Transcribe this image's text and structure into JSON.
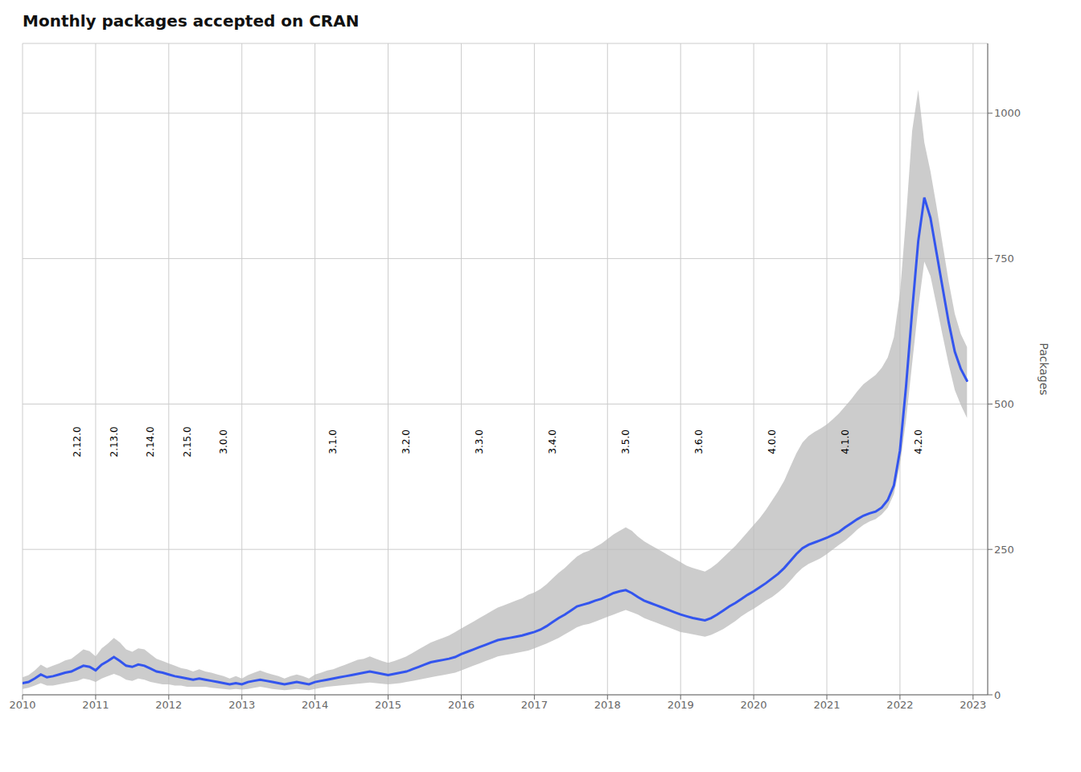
{
  "chart_data": {
    "type": "line",
    "title": "Monthly packages accepted on CRAN",
    "ylabel": "Packages",
    "color": "#3355ee",
    "grid": true,
    "xlim": [
      2010.0,
      2023.2
    ],
    "xticks": [
      2010,
      2011,
      2012,
      2013,
      2014,
      2015,
      2016,
      2017,
      2018,
      2019,
      2020,
      2021,
      2022,
      2023
    ],
    "ylim": [
      0,
      1120
    ],
    "yticks": [
      0,
      250,
      500,
      750,
      1000
    ],
    "x": [
      2010.0,
      2010.083,
      2010.167,
      2010.25,
      2010.333,
      2010.417,
      2010.5,
      2010.583,
      2010.667,
      2010.75,
      2010.833,
      2010.917,
      2011.0,
      2011.083,
      2011.167,
      2011.25,
      2011.333,
      2011.417,
      2011.5,
      2011.583,
      2011.667,
      2011.75,
      2011.833,
      2011.917,
      2012.0,
      2012.083,
      2012.167,
      2012.25,
      2012.333,
      2012.417,
      2012.5,
      2012.583,
      2012.667,
      2012.75,
      2012.833,
      2012.917,
      2013.0,
      2013.083,
      2013.167,
      2013.25,
      2013.333,
      2013.417,
      2013.5,
      2013.583,
      2013.667,
      2013.75,
      2013.833,
      2013.917,
      2014.0,
      2014.083,
      2014.167,
      2014.25,
      2014.333,
      2014.417,
      2014.5,
      2014.583,
      2014.667,
      2014.75,
      2014.833,
      2014.917,
      2015.0,
      2015.083,
      2015.167,
      2015.25,
      2015.333,
      2015.417,
      2015.5,
      2015.583,
      2015.667,
      2015.75,
      2015.833,
      2015.917,
      2016.0,
      2016.083,
      2016.167,
      2016.25,
      2016.333,
      2016.417,
      2016.5,
      2016.583,
      2016.667,
      2016.75,
      2016.833,
      2016.917,
      2017.0,
      2017.083,
      2017.167,
      2017.25,
      2017.333,
      2017.417,
      2017.5,
      2017.583,
      2017.667,
      2017.75,
      2017.833,
      2017.917,
      2018.0,
      2018.083,
      2018.167,
      2018.25,
      2018.333,
      2018.417,
      2018.5,
      2018.583,
      2018.667,
      2018.75,
      2018.833,
      2018.917,
      2019.0,
      2019.083,
      2019.167,
      2019.25,
      2019.333,
      2019.417,
      2019.5,
      2019.583,
      2019.667,
      2019.75,
      2019.833,
      2019.917,
      2020.0,
      2020.083,
      2020.167,
      2020.25,
      2020.333,
      2020.417,
      2020.5,
      2020.583,
      2020.667,
      2020.75,
      2020.833,
      2020.917,
      2021.0,
      2021.083,
      2021.167,
      2021.25,
      2021.333,
      2021.417,
      2021.5,
      2021.583,
      2021.667,
      2021.75,
      2021.833,
      2021.917,
      2022.0,
      2022.083,
      2022.167,
      2022.25,
      2022.333,
      2022.417,
      2022.5,
      2022.583,
      2022.667,
      2022.75,
      2022.833,
      2022.917
    ],
    "values": [
      20,
      22,
      28,
      35,
      30,
      32,
      35,
      38,
      40,
      45,
      50,
      48,
      42,
      52,
      58,
      65,
      58,
      50,
      48,
      52,
      50,
      45,
      40,
      38,
      35,
      32,
      30,
      28,
      26,
      28,
      26,
      24,
      22,
      20,
      18,
      20,
      18,
      22,
      24,
      26,
      24,
      22,
      20,
      18,
      20,
      22,
      20,
      18,
      22,
      24,
      26,
      28,
      30,
      32,
      34,
      36,
      38,
      40,
      38,
      36,
      34,
      36,
      38,
      40,
      44,
      48,
      52,
      56,
      58,
      60,
      62,
      65,
      70,
      74,
      78,
      82,
      86,
      90,
      94,
      96,
      98,
      100,
      102,
      105,
      108,
      112,
      118,
      125,
      132,
      138,
      145,
      152,
      155,
      158,
      162,
      165,
      170,
      175,
      178,
      180,
      175,
      168,
      162,
      158,
      154,
      150,
      146,
      142,
      138,
      135,
      132,
      130,
      128,
      132,
      138,
      145,
      152,
      158,
      165,
      172,
      178,
      185,
      192,
      200,
      208,
      218,
      230,
      242,
      252,
      258,
      262,
      266,
      270,
      275,
      280,
      288,
      295,
      302,
      308,
      312,
      315,
      322,
      335,
      360,
      420,
      530,
      660,
      780,
      855,
      820,
      760,
      700,
      640,
      590,
      560,
      540
    ],
    "ribbon": {
      "color": "#bbbbbb",
      "upper": [
        30,
        34,
        42,
        52,
        46,
        50,
        54,
        59,
        62,
        70,
        78,
        75,
        66,
        80,
        88,
        98,
        90,
        78,
        74,
        80,
        78,
        70,
        62,
        58,
        54,
        50,
        46,
        44,
        40,
        44,
        40,
        38,
        35,
        32,
        28,
        32,
        28,
        34,
        38,
        42,
        38,
        35,
        32,
        28,
        32,
        35,
        32,
        28,
        35,
        38,
        42,
        44,
        48,
        52,
        56,
        60,
        62,
        66,
        62,
        58,
        55,
        58,
        62,
        66,
        72,
        78,
        84,
        90,
        94,
        98,
        102,
        108,
        114,
        120,
        126,
        132,
        138,
        144,
        150,
        154,
        158,
        162,
        166,
        172,
        176,
        182,
        190,
        200,
        210,
        218,
        228,
        238,
        244,
        248,
        254,
        260,
        268,
        276,
        282,
        288,
        282,
        272,
        264,
        258,
        252,
        246,
        240,
        234,
        228,
        222,
        218,
        215,
        212,
        218,
        226,
        236,
        246,
        256,
        268,
        280,
        292,
        304,
        318,
        334,
        350,
        368,
        392,
        415,
        434,
        445,
        452,
        458,
        465,
        474,
        484,
        496,
        508,
        522,
        534,
        542,
        550,
        562,
        580,
        615,
        690,
        820,
        970,
        1040,
        950,
        900,
        840,
        775,
        710,
        655,
        620,
        598
      ],
      "lower": [
        10,
        12,
        16,
        20,
        16,
        16,
        18,
        20,
        22,
        24,
        28,
        26,
        22,
        28,
        32,
        36,
        32,
        26,
        24,
        28,
        26,
        22,
        20,
        18,
        18,
        16,
        16,
        14,
        14,
        14,
        14,
        12,
        11,
        10,
        9,
        10,
        9,
        10,
        12,
        14,
        12,
        10,
        9,
        8,
        9,
        10,
        9,
        8,
        10,
        12,
        14,
        15,
        16,
        17,
        18,
        19,
        20,
        21,
        20,
        19,
        18,
        19,
        20,
        22,
        24,
        26,
        28,
        30,
        32,
        34,
        36,
        38,
        42,
        46,
        50,
        54,
        58,
        62,
        66,
        68,
        70,
        72,
        74,
        76,
        80,
        84,
        88,
        93,
        98,
        104,
        110,
        116,
        120,
        122,
        126,
        130,
        134,
        138,
        142,
        146,
        142,
        138,
        132,
        128,
        124,
        120,
        116,
        112,
        108,
        106,
        104,
        102,
        100,
        103,
        108,
        113,
        120,
        127,
        135,
        142,
        148,
        155,
        162,
        168,
        176,
        185,
        196,
        208,
        218,
        225,
        230,
        235,
        242,
        250,
        258,
        265,
        274,
        284,
        292,
        298,
        302,
        310,
        322,
        345,
        395,
        472,
        570,
        665,
        745,
        720,
        670,
        618,
        568,
        524,
        498,
        476
      ]
    },
    "annotations": [
      {
        "text": "2.12.0",
        "x": 2010.75,
        "y": 435
      },
      {
        "text": "2.13.0",
        "x": 2011.25,
        "y": 435
      },
      {
        "text": "2.14.0",
        "x": 2011.75,
        "y": 435
      },
      {
        "text": "2.15.0",
        "x": 2012.25,
        "y": 435
      },
      {
        "text": "3.0.0",
        "x": 2012.75,
        "y": 435
      },
      {
        "text": "3.1.0",
        "x": 2014.25,
        "y": 435
      },
      {
        "text": "3.2.0",
        "x": 2015.25,
        "y": 435
      },
      {
        "text": "3.3.0",
        "x": 2016.25,
        "y": 435
      },
      {
        "text": "3.4.0",
        "x": 2017.25,
        "y": 435
      },
      {
        "text": "3.5.0",
        "x": 2018.25,
        "y": 435
      },
      {
        "text": "3.6.0",
        "x": 2019.25,
        "y": 435
      },
      {
        "text": "4.0.0",
        "x": 2020.25,
        "y": 435
      },
      {
        "text": "4.1.0",
        "x": 2021.25,
        "y": 435
      },
      {
        "text": "4.2.0",
        "x": 2022.25,
        "y": 435
      }
    ]
  }
}
